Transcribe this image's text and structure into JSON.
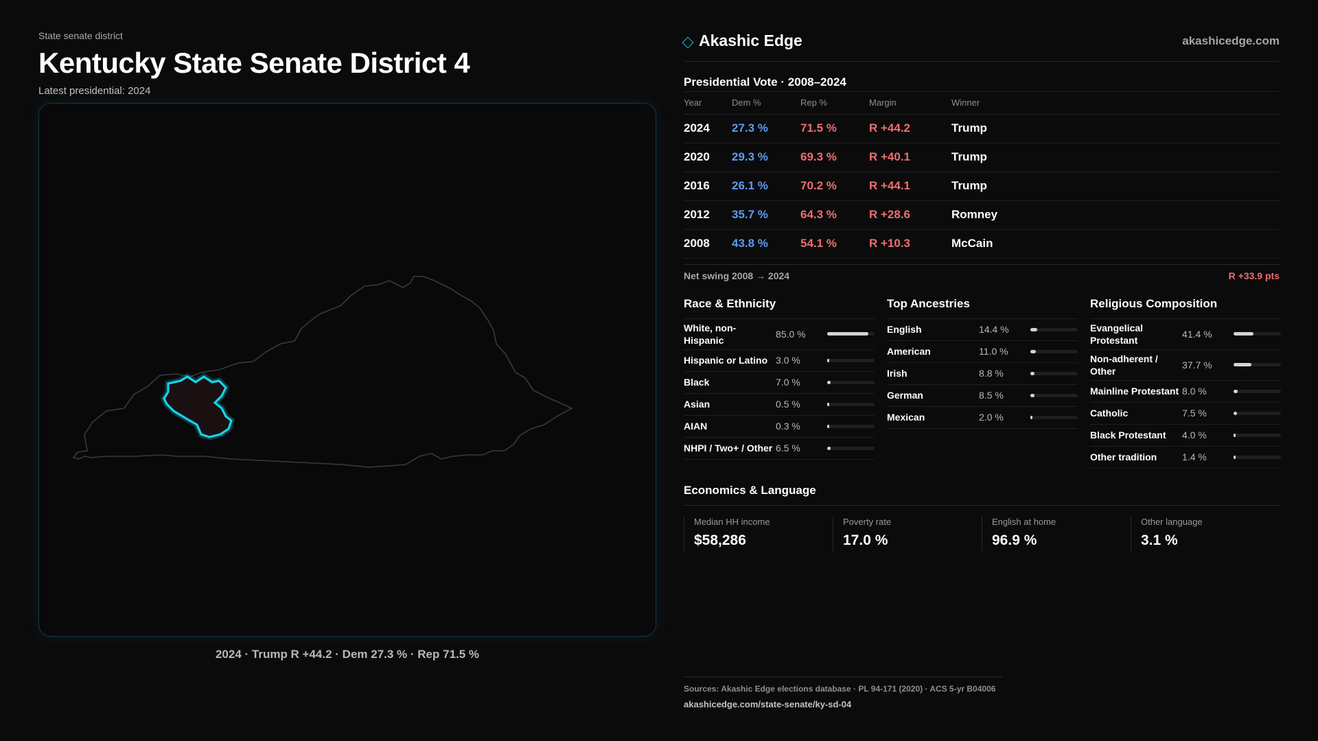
{
  "header": {
    "eyebrow": "State senate district",
    "title": "Kentucky State Senate District 4",
    "subtitle": "Latest presidential: 2024"
  },
  "map": {
    "caption": "2024 · Trump R +44.2 · Dem 27.3 % · Rep 71.5 %",
    "state_outline_color": "#3a3a3d",
    "district_highlight_color": "#19d3e6",
    "district_fill_color": "#1a1012"
  },
  "brand": {
    "name": "Akashic Edge",
    "url": "akashicedge.com",
    "icon": "diamond-icon",
    "accent": "#19c6d6"
  },
  "presidential": {
    "title": "Presidential Vote · 2008–2024",
    "columns": [
      "Year",
      "Dem %",
      "Rep %",
      "Margin",
      "Winner"
    ],
    "rows": [
      {
        "year": "2024",
        "dem": "27.3 %",
        "rep": "71.5 %",
        "margin": "R +44.2",
        "winner": "Trump"
      },
      {
        "year": "2020",
        "dem": "29.3 %",
        "rep": "69.3 %",
        "margin": "R +40.1",
        "winner": "Trump"
      },
      {
        "year": "2016",
        "dem": "26.1 %",
        "rep": "70.2 %",
        "margin": "R +44.1",
        "winner": "Trump"
      },
      {
        "year": "2012",
        "dem": "35.7 %",
        "rep": "64.3 %",
        "margin": "R +28.6",
        "winner": "Romney"
      },
      {
        "year": "2008",
        "dem": "43.8 %",
        "rep": "54.1 %",
        "margin": "R +10.3",
        "winner": "McCain"
      }
    ],
    "dem_color": "#5d9cf0",
    "rep_color": "#ef6e6e",
    "swing_label": "Net swing 2008 → 2024",
    "swing_value": "R +33.9 pts"
  },
  "race": {
    "title": "Race & Ethnicity",
    "items": [
      {
        "label": "White, non-Hispanic",
        "value": "85.0 %",
        "pct": 85.0
      },
      {
        "label": "Hispanic or Latino",
        "value": "3.0 %",
        "pct": 3.0
      },
      {
        "label": "Black",
        "value": "7.0 %",
        "pct": 7.0
      },
      {
        "label": "Asian",
        "value": "0.5 %",
        "pct": 0.5
      },
      {
        "label": "AIAN",
        "value": "0.3 %",
        "pct": 0.3
      },
      {
        "label": "NHPI / Two+ / Other",
        "value": "6.5 %",
        "pct": 6.5
      }
    ]
  },
  "ancestry": {
    "title": "Top Ancestries",
    "items": [
      {
        "label": "English",
        "value": "14.4 %",
        "pct": 14.4
      },
      {
        "label": "American",
        "value": "11.0 %",
        "pct": 11.0
      },
      {
        "label": "Irish",
        "value": "8.8 %",
        "pct": 8.8
      },
      {
        "label": "German",
        "value": "8.5 %",
        "pct": 8.5
      },
      {
        "label": "Mexican",
        "value": "2.0 %",
        "pct": 2.0
      }
    ]
  },
  "religion": {
    "title": "Religious Composition",
    "items": [
      {
        "label": "Evangelical Protestant",
        "value": "41.4 %",
        "pct": 41.4
      },
      {
        "label": "Non-adherent / Other",
        "value": "37.7 %",
        "pct": 37.7
      },
      {
        "label": "Mainline Protestant",
        "value": "8.0 %",
        "pct": 8.0
      },
      {
        "label": "Catholic",
        "value": "7.5 %",
        "pct": 7.5
      },
      {
        "label": "Black Protestant",
        "value": "4.0 %",
        "pct": 4.0
      },
      {
        "label": "Other tradition",
        "value": "1.4 %",
        "pct": 1.4
      }
    ]
  },
  "economics": {
    "title": "Economics & Language",
    "items": [
      {
        "label": "Median HH income",
        "value": "$58,286"
      },
      {
        "label": "Poverty rate",
        "value": "17.0 %"
      },
      {
        "label": "English at home",
        "value": "96.9 %"
      },
      {
        "label": "Other language",
        "value": "3.1 %"
      }
    ]
  },
  "footer": {
    "sources": "Sources: Akashic Edge elections database · PL 94-171 (2020) · ACS 5-yr B04006",
    "url": "akashicedge.com/state-senate/ky-sd-04"
  }
}
